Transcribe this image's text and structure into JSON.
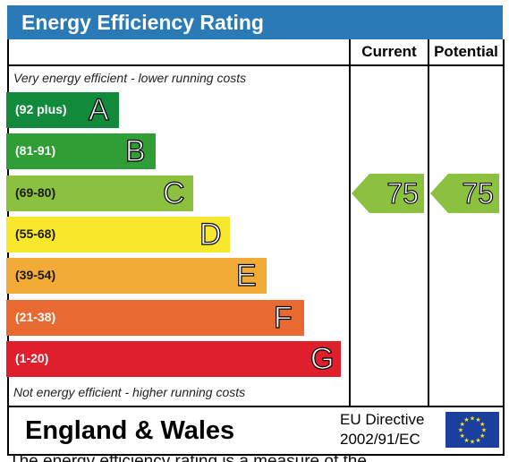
{
  "title": "Energy Efficiency Rating",
  "columns": {
    "current": "Current",
    "potential": "Potential"
  },
  "captions": {
    "top": "Very energy efficient - lower running costs",
    "bottom": "Not energy efficient - higher running costs"
  },
  "chart_data": {
    "type": "bar",
    "title": "Energy Efficiency Rating",
    "categories": [
      "A",
      "B",
      "C",
      "D",
      "E",
      "F",
      "G"
    ],
    "ranges": [
      "(92 plus)",
      "(81-91)",
      "(69-80)",
      "(55-68)",
      "(39-54)",
      "(21-38)",
      "(1-20)"
    ],
    "colors": [
      "#128a3c",
      "#2f9e35",
      "#8cc140",
      "#f9e72c",
      "#f3ab37",
      "#e96a31",
      "#e01f2d"
    ],
    "current": 75,
    "potential": 75,
    "rating_color": "#8cc140"
  },
  "footer": {
    "region": "England & Wales",
    "directive_line1": "EU Directive",
    "directive_line2": "2002/91/EC",
    "flag_color": "#1b3f9e",
    "star_color": "#f7e01c"
  },
  "cut_text": "The energy efficiency rating is a measure of the"
}
